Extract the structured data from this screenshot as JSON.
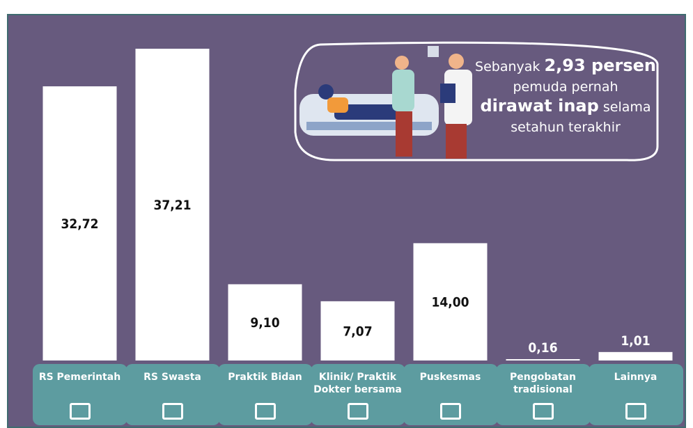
{
  "chart_data": {
    "type": "bar",
    "categories": [
      "RS Pemerintah",
      "RS Swasta",
      "Praktik Bidan",
      "Klinik/ Praktik Dokter bersama",
      "Puskesmas",
      "Pengobatan tradisional",
      "Lainnya"
    ],
    "values": [
      32.72,
      37.21,
      9.1,
      7.07,
      14.0,
      0.16,
      1.01
    ],
    "value_labels": [
      "32,72",
      "37,21",
      "9,10",
      "7,07",
      "14,00",
      "0,16",
      "1,01"
    ],
    "color": "#ffffff",
    "annotation": {
      "lines": [
        [
          "Sebanyak ",
          "2,93 persen"
        ],
        [
          "pemuda pernah"
        ],
        [
          "dirawat inap",
          " selama"
        ],
        [
          "setahun terakhir"
        ]
      ]
    }
  }
}
